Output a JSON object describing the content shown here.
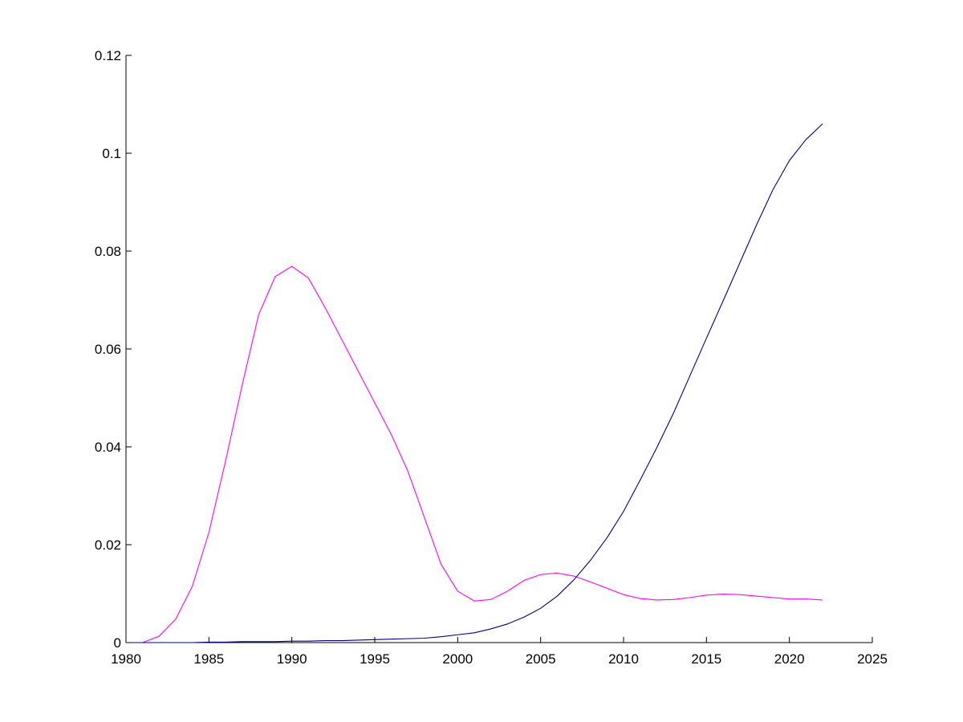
{
  "chart_data": {
    "type": "line",
    "title": "",
    "xlabel": "",
    "ylabel": "",
    "xlim": [
      1980,
      2025
    ],
    "ylim": [
      0,
      0.12
    ],
    "grid": false,
    "legend": "none",
    "x_ticks": [
      "1980",
      "1985",
      "1990",
      "1995",
      "2000",
      "2005",
      "2010",
      "2015",
      "2020",
      "2025"
    ],
    "y_ticks": [
      "0",
      "0.02",
      "0.04",
      "0.06",
      "0.08",
      "0.1",
      "0.12"
    ],
    "x": [
      1980,
      1981,
      1982,
      1983,
      1984,
      1985,
      1986,
      1987,
      1988,
      1989,
      1990,
      1991,
      1992,
      1993,
      1994,
      1995,
      1996,
      1997,
      1998,
      1999,
      2000,
      2001,
      2002,
      2003,
      2004,
      2005,
      2006,
      2007,
      2008,
      2009,
      2010,
      2011,
      2012,
      2013,
      2014,
      2015,
      2016,
      2017,
      2018,
      2019,
      2020,
      2021,
      2022
    ],
    "series": [
      {
        "color": "#ff00ff",
        "values": [
          0,
          0,
          0.0013,
          0.0048,
          0.0115,
          0.0225,
          0.037,
          0.0525,
          0.067,
          0.0748,
          0.0769,
          0.0745,
          0.0685,
          0.062,
          0.0555,
          0.049,
          0.0425,
          0.035,
          0.0255,
          0.016,
          0.0105,
          0.0085,
          0.0088,
          0.0105,
          0.0127,
          0.0139,
          0.0142,
          0.0136,
          0.0124,
          0.0111,
          0.0098,
          0.009,
          0.0087,
          0.0088,
          0.0092,
          0.0097,
          0.0099,
          0.0098,
          0.0095,
          0.0092,
          0.0089,
          0.0089,
          0.0087
        ]
      },
      {
        "color": "#00008b",
        "values": [
          0,
          0,
          0,
          0,
          0,
          0.0001,
          0.0001,
          0.0002,
          0.0002,
          0.0002,
          0.0003,
          0.0003,
          0.0004,
          0.0004,
          0.0005,
          0.0006,
          0.0007,
          0.0008,
          0.0009,
          0.0012,
          0.0016,
          0.002,
          0.0028,
          0.0038,
          0.0052,
          0.007,
          0.0095,
          0.0128,
          0.0168,
          0.0214,
          0.0268,
          0.0332,
          0.0398,
          0.0468,
          0.0545,
          0.0622,
          0.0698,
          0.0775,
          0.0852,
          0.0925,
          0.0985,
          0.1028,
          0.106
        ]
      }
    ]
  }
}
